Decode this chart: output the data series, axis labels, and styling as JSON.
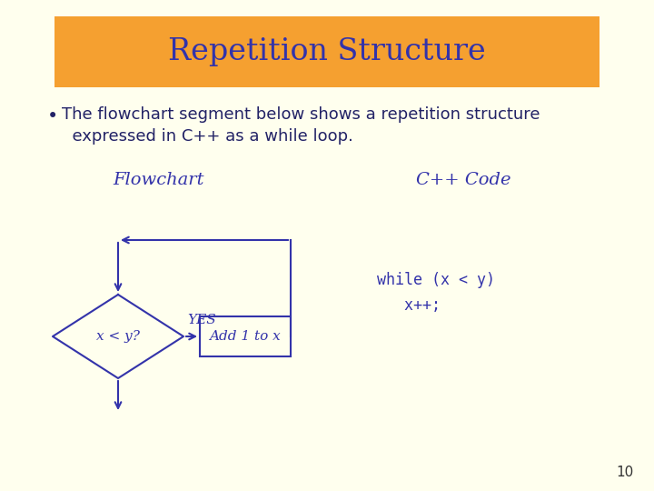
{
  "bg_color": "#FFFFEE",
  "title_box_color": "#F5A030",
  "title_text": "Repetition Structure",
  "title_text_color": "#3333AA",
  "title_fontsize": 24,
  "bullet_text_color": "#222266",
  "bullet_fontsize": 13,
  "flowchart_label": "Flowchart",
  "cpp_label": "C++ Code",
  "label_color": "#3333AA",
  "label_fontsize": 14,
  "diamond_label": "x < y?",
  "diamond_color": "#FFFFEE",
  "diamond_edge_color": "#3333AA",
  "rect_label": "Add 1 to x",
  "rect_color": "#FFFFEE",
  "rect_edge_color": "#3333AA",
  "arrow_color": "#3333AA",
  "yes_label": "YES",
  "code_line1": "while (x < y)",
  "code_line2": "   x++;",
  "code_color": "#3333AA",
  "code_fontsize": 12,
  "page_number": "10",
  "page_color": "#333333",
  "page_fontsize": 11
}
